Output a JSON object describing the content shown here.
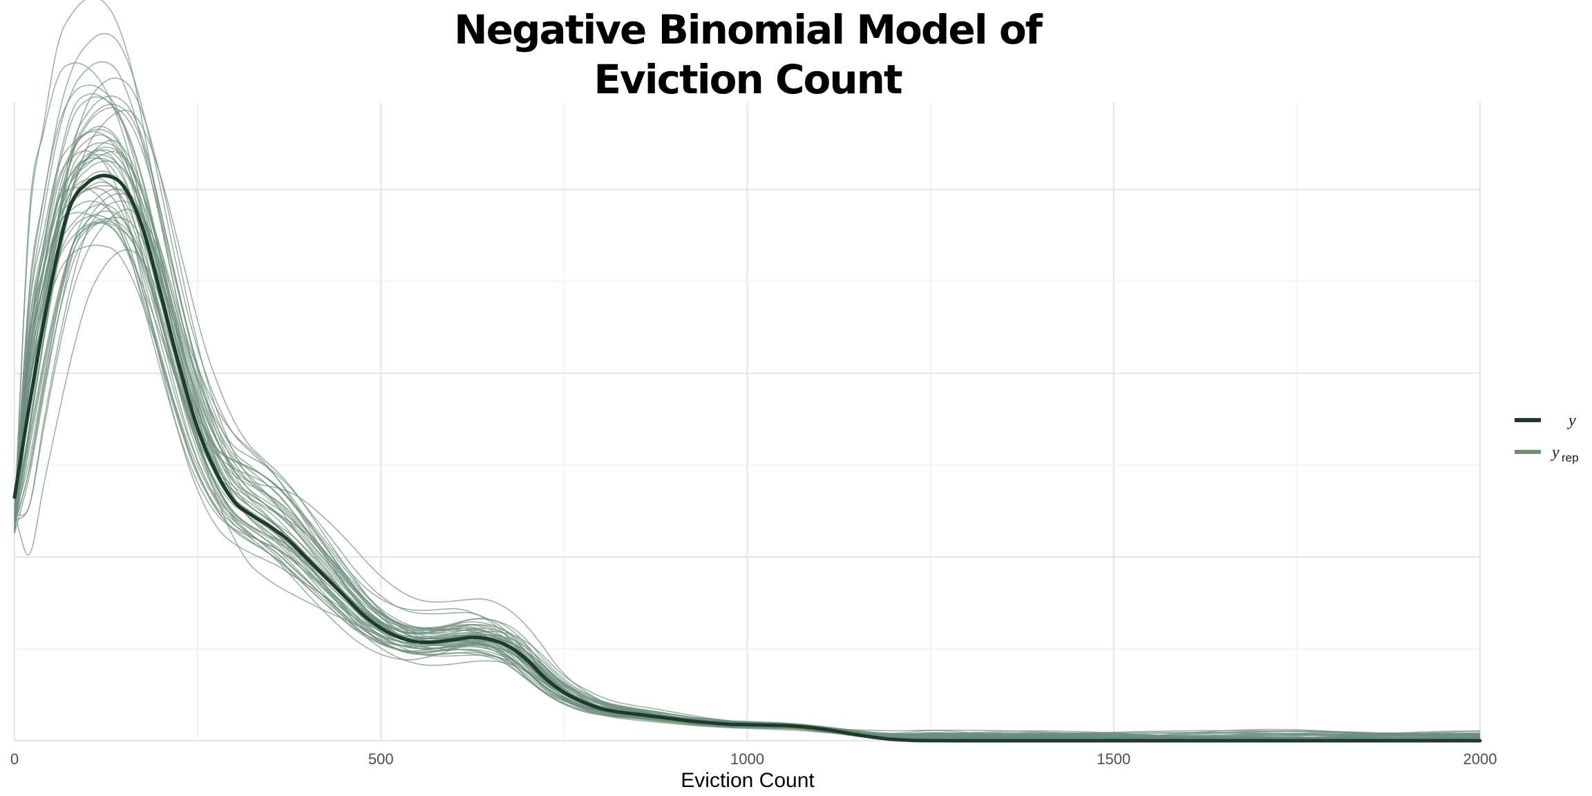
{
  "chart_data": {
    "type": "line",
    "title": [
      "Negative Binomial Model of",
      "Eviction Count"
    ],
    "xlabel": "Eviction Count",
    "ylabel": "",
    "xlim": [
      0,
      2000
    ],
    "ylim": [
      0,
      0.00278
    ],
    "x_ticks": [
      0,
      500,
      1000,
      1500,
      2000
    ],
    "x_tick_labels": [
      "0",
      "500",
      "1000",
      "1500",
      "2000"
    ],
    "y_tick_labels": [],
    "grid": true,
    "legend_position": "right",
    "legend": [
      {
        "key": "y",
        "label": "y",
        "subscript": "",
        "color": "#1c3b2a"
      },
      {
        "key": "yrep",
        "label": "y",
        "subscript": "rep",
        "color": "#6f8f7d"
      }
    ],
    "replicate_count": 50,
    "series": [
      {
        "name": "y",
        "color": "#1c3b2a",
        "x": [
          0,
          25,
          50,
          75,
          100,
          125,
          150,
          175,
          200,
          225,
          250,
          275,
          300,
          325,
          350,
          375,
          400,
          425,
          450,
          475,
          500,
          525,
          550,
          575,
          600,
          625,
          650,
          675,
          700,
          725,
          750,
          775,
          800,
          825,
          850,
          875,
          900,
          925,
          950,
          975,
          1000,
          1025,
          1050,
          1075,
          1100,
          1125,
          1150,
          1175,
          1200,
          1225,
          1250,
          1275,
          1300,
          1400,
          1500,
          1600,
          1700,
          1800,
          1900,
          2000
        ],
        "y": [
          0.00106,
          0.00155,
          0.00199,
          0.00232,
          0.00243,
          0.00246,
          0.00241,
          0.00223,
          0.00194,
          0.00163,
          0.00136,
          0.00117,
          0.00104,
          0.00098,
          0.00093,
          0.00087,
          0.00079,
          0.00071,
          0.00063,
          0.00055,
          0.00049,
          0.00045,
          0.00043,
          0.00043,
          0.00044,
          0.00045,
          0.00044,
          0.00041,
          0.00035,
          0.00027,
          0.00021,
          0.00017,
          0.00014,
          0.000125,
          0.000115,
          0.000105,
          9.5e-05,
          8.5e-05,
          7.8e-05,
          7.2e-05,
          7e-05,
          6.8e-05,
          6.6e-05,
          6.1e-05,
          5.2e-05,
          4e-05,
          2.6e-05,
          1.4e-05,
          5.5e-06,
          1.5e-06,
          2e-07,
          0.0,
          0.0,
          0.0,
          0.0,
          0.0,
          0.0,
          0.0,
          0.0,
          0.0
        ]
      }
    ]
  }
}
